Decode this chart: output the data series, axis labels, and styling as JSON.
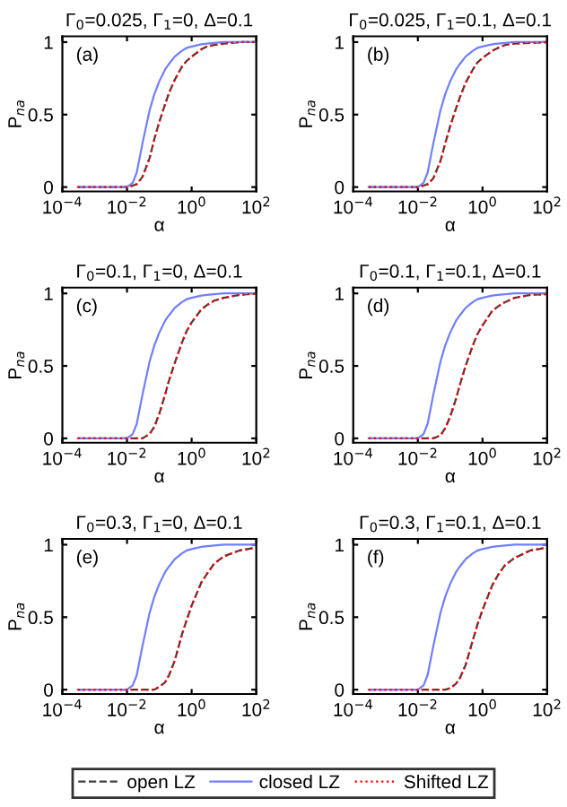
{
  "chart_data": [
    {
      "type": "line",
      "title": "Γ$_{0}$=0.025, Γ$_{1}$=0, Δ=0.1",
      "xlabel": "α",
      "ylabel": "P$_{na}$",
      "annotations": [
        "(a)"
      ],
      "log": "x",
      "xlim": [
        0.0001,
        100
      ],
      "ylim": [
        -0.03,
        1.04
      ],
      "xticks": [
        {
          "value": 0.0001,
          "label": "10$^{−4}$"
        },
        {
          "value": 0.01,
          "label": "10$^{−2}$"
        },
        {
          "value": 1,
          "label": "10$^{0}$"
        },
        {
          "value": 100,
          "label": "10$^{2}$"
        }
      ],
      "yticks": [
        0,
        0.5,
        1
      ],
      "x": [
        0.0003,
        0.001,
        0.003,
        0.01,
        0.015,
        0.02,
        0.03,
        0.05,
        0.07,
        0.1,
        0.15,
        0.2,
        0.3,
        0.5,
        0.7,
        1,
        2,
        3,
        5,
        10,
        30,
        100
      ],
      "legend": "bottom",
      "series": [
        {
          "name": "open LZ",
          "color": "#404040",
          "line_style": "dashed",
          "values": [
            0,
            0,
            0,
            0,
            0.01,
            0.02,
            0.07,
            0.2,
            0.33,
            0.45,
            0.57,
            0.65,
            0.74,
            0.83,
            0.87,
            0.9,
            0.95,
            0.97,
            0.98,
            0.99,
            1,
            1
          ]
        },
        {
          "name": "closed LZ",
          "color": "#6f7fff",
          "line_style": "solid",
          "values": [
            0,
            0,
            0,
            0,
            0.03,
            0.1,
            0.3,
            0.53,
            0.64,
            0.73,
            0.81,
            0.85,
            0.9,
            0.94,
            0.96,
            0.97,
            0.985,
            0.99,
            0.995,
            1,
            1,
            1
          ]
        },
        {
          "name": "Shifted LZ",
          "color": "#ff0000",
          "line_style": "dotted",
          "values": [
            0,
            0,
            0,
            0,
            0.01,
            0.02,
            0.07,
            0.2,
            0.33,
            0.45,
            0.57,
            0.65,
            0.74,
            0.83,
            0.87,
            0.9,
            0.95,
            0.97,
            0.98,
            0.99,
            1,
            1
          ]
        }
      ]
    },
    {
      "type": "line",
      "title": "Γ$_{0}$=0.025, Γ$_{1}$=0.1, Δ=0.1",
      "xlabel": "α",
      "ylabel": "P$_{na}$",
      "annotations": [
        "(b)"
      ],
      "log": "x",
      "xlim": [
        0.0001,
        100
      ],
      "ylim": [
        -0.03,
        1.04
      ],
      "xticks": [
        {
          "value": 0.0001,
          "label": "10$^{−4}$"
        },
        {
          "value": 0.01,
          "label": "10$^{−2}$"
        },
        {
          "value": 1,
          "label": "10$^{0}$"
        },
        {
          "value": 100,
          "label": "10$^{2}$"
        }
      ],
      "yticks": [
        0,
        0.5,
        1
      ],
      "x": [
        0.0003,
        0.001,
        0.003,
        0.01,
        0.015,
        0.02,
        0.03,
        0.05,
        0.07,
        0.1,
        0.15,
        0.2,
        0.3,
        0.5,
        0.7,
        1,
        2,
        3,
        5,
        10,
        30,
        100
      ],
      "legend": "bottom",
      "series": [
        {
          "name": "open LZ",
          "color": "#404040",
          "line_style": "dashed",
          "values": [
            0,
            0,
            0,
            0,
            0.01,
            0.02,
            0.06,
            0.18,
            0.3,
            0.42,
            0.54,
            0.62,
            0.72,
            0.81,
            0.86,
            0.89,
            0.94,
            0.96,
            0.98,
            0.99,
            0.995,
            1
          ]
        },
        {
          "name": "closed LZ",
          "color": "#6f7fff",
          "line_style": "solid",
          "values": [
            0,
            0,
            0,
            0,
            0.03,
            0.1,
            0.3,
            0.53,
            0.64,
            0.73,
            0.81,
            0.85,
            0.9,
            0.94,
            0.96,
            0.97,
            0.985,
            0.99,
            0.995,
            1,
            1,
            1
          ]
        },
        {
          "name": "Shifted LZ",
          "color": "#ff0000",
          "line_style": "dotted",
          "values": [
            0,
            0,
            0,
            0,
            0.01,
            0.02,
            0.06,
            0.18,
            0.3,
            0.42,
            0.54,
            0.62,
            0.72,
            0.81,
            0.86,
            0.89,
            0.94,
            0.96,
            0.98,
            0.99,
            0.995,
            1
          ]
        }
      ]
    },
    {
      "type": "line",
      "title": "Γ$_{0}$=0.1, Γ$_{1}$=0, Δ=0.1",
      "xlabel": "α",
      "ylabel": "P$_{na}$",
      "annotations": [
        "(c)"
      ],
      "log": "x",
      "xlim": [
        0.0001,
        100
      ],
      "ylim": [
        -0.03,
        1.04
      ],
      "xticks": [
        {
          "value": 0.0001,
          "label": "10$^{−4}$"
        },
        {
          "value": 0.01,
          "label": "10$^{−2}$"
        },
        {
          "value": 1,
          "label": "10$^{0}$"
        },
        {
          "value": 100,
          "label": "10$^{2}$"
        }
      ],
      "yticks": [
        0,
        0.5,
        1
      ],
      "x": [
        0.0003,
        0.001,
        0.003,
        0.01,
        0.015,
        0.02,
        0.03,
        0.05,
        0.07,
        0.1,
        0.15,
        0.2,
        0.3,
        0.5,
        0.7,
        1,
        2,
        3,
        5,
        10,
        30,
        100
      ],
      "legend": "bottom",
      "series": [
        {
          "name": "open LZ",
          "color": "#404040",
          "line_style": "dashed",
          "values": [
            0,
            0,
            0,
            0,
            0,
            0,
            0,
            0.03,
            0.08,
            0.17,
            0.3,
            0.4,
            0.52,
            0.66,
            0.74,
            0.8,
            0.89,
            0.92,
            0.95,
            0.97,
            0.99,
            1
          ]
        },
        {
          "name": "closed LZ",
          "color": "#6f7fff",
          "line_style": "solid",
          "values": [
            0,
            0,
            0,
            0,
            0.03,
            0.1,
            0.3,
            0.53,
            0.64,
            0.73,
            0.81,
            0.85,
            0.9,
            0.94,
            0.96,
            0.97,
            0.985,
            0.99,
            0.995,
            1,
            1,
            1
          ]
        },
        {
          "name": "Shifted LZ",
          "color": "#ff0000",
          "line_style": "dotted",
          "values": [
            0,
            0,
            0,
            0,
            0,
            0,
            0,
            0.03,
            0.08,
            0.17,
            0.3,
            0.4,
            0.52,
            0.66,
            0.74,
            0.8,
            0.89,
            0.92,
            0.95,
            0.97,
            0.99,
            1
          ]
        }
      ]
    },
    {
      "type": "line",
      "title": "Γ$_{0}$=0.1, Γ$_{1}$=0.1, Δ=0.1",
      "xlabel": "α",
      "ylabel": "P$_{na}$",
      "annotations": [
        "(d)"
      ],
      "log": "x",
      "xlim": [
        0.0001,
        100
      ],
      "ylim": [
        -0.03,
        1.04
      ],
      "xticks": [
        {
          "value": 0.0001,
          "label": "10$^{−4}$"
        },
        {
          "value": 0.01,
          "label": "10$^{−2}$"
        },
        {
          "value": 1,
          "label": "10$^{0}$"
        },
        {
          "value": 100,
          "label": "10$^{2}$"
        }
      ],
      "yticks": [
        0,
        0.5,
        1
      ],
      "x": [
        0.0003,
        0.001,
        0.003,
        0.01,
        0.015,
        0.02,
        0.03,
        0.05,
        0.07,
        0.1,
        0.15,
        0.2,
        0.3,
        0.5,
        0.7,
        1,
        2,
        3,
        5,
        10,
        30,
        100
      ],
      "legend": "bottom",
      "series": [
        {
          "name": "open LZ",
          "color": "#404040",
          "line_style": "dashed",
          "values": [
            0,
            0,
            0,
            0,
            0,
            0,
            0,
            0.02,
            0.07,
            0.15,
            0.27,
            0.37,
            0.5,
            0.64,
            0.72,
            0.78,
            0.88,
            0.91,
            0.94,
            0.97,
            0.99,
            0.995
          ]
        },
        {
          "name": "closed LZ",
          "color": "#6f7fff",
          "line_style": "solid",
          "values": [
            0,
            0,
            0,
            0,
            0.03,
            0.1,
            0.3,
            0.53,
            0.64,
            0.73,
            0.81,
            0.85,
            0.9,
            0.94,
            0.96,
            0.97,
            0.985,
            0.99,
            0.995,
            1,
            1,
            1
          ]
        },
        {
          "name": "Shifted LZ",
          "color": "#ff0000",
          "line_style": "dotted",
          "values": [
            0,
            0,
            0,
            0,
            0,
            0,
            0,
            0.02,
            0.07,
            0.15,
            0.27,
            0.37,
            0.5,
            0.64,
            0.72,
            0.78,
            0.88,
            0.91,
            0.94,
            0.97,
            0.99,
            0.995
          ]
        }
      ]
    },
    {
      "type": "line",
      "title": "Γ$_{0}$=0.3, Γ$_{1}$=0, Δ=0.1",
      "xlabel": "α",
      "ylabel": "P$_{na}$",
      "annotations": [
        "(e)"
      ],
      "log": "x",
      "xlim": [
        0.0001,
        100
      ],
      "ylim": [
        -0.03,
        1.04
      ],
      "xticks": [
        {
          "value": 0.0001,
          "label": "10$^{−4}$"
        },
        {
          "value": 0.01,
          "label": "10$^{−2}$"
        },
        {
          "value": 1,
          "label": "10$^{0}$"
        },
        {
          "value": 100,
          "label": "10$^{2}$"
        }
      ],
      "yticks": [
        0,
        0.5,
        1
      ],
      "x": [
        0.0003,
        0.001,
        0.003,
        0.01,
        0.015,
        0.02,
        0.03,
        0.05,
        0.07,
        0.1,
        0.15,
        0.2,
        0.3,
        0.5,
        0.7,
        1,
        2,
        3,
        5,
        10,
        30,
        100
      ],
      "legend": "bottom",
      "series": [
        {
          "name": "open LZ",
          "color": "#404040",
          "line_style": "dashed",
          "values": [
            0,
            0,
            0,
            0,
            0,
            0,
            0,
            0,
            0,
            0.02,
            0.05,
            0.1,
            0.2,
            0.38,
            0.48,
            0.58,
            0.74,
            0.8,
            0.87,
            0.92,
            0.96,
            0.98
          ]
        },
        {
          "name": "closed LZ",
          "color": "#6f7fff",
          "line_style": "solid",
          "values": [
            0,
            0,
            0,
            0,
            0.03,
            0.1,
            0.3,
            0.53,
            0.64,
            0.73,
            0.81,
            0.85,
            0.9,
            0.94,
            0.96,
            0.97,
            0.985,
            0.99,
            0.995,
            1,
            1,
            1
          ]
        },
        {
          "name": "Shifted LZ",
          "color": "#ff0000",
          "line_style": "dotted",
          "values": [
            0,
            0,
            0,
            0,
            0,
            0,
            0,
            0,
            0,
            0.02,
            0.05,
            0.1,
            0.2,
            0.38,
            0.48,
            0.58,
            0.74,
            0.8,
            0.87,
            0.92,
            0.96,
            0.98
          ]
        }
      ]
    },
    {
      "type": "line",
      "title": "Γ$_{0}$=0.3, Γ$_{1}$=0.1, Δ=0.1",
      "xlabel": "α",
      "ylabel": "P$_{na}$",
      "annotations": [
        "(f)"
      ],
      "log": "x",
      "xlim": [
        0.0001,
        100
      ],
      "ylim": [
        -0.03,
        1.04
      ],
      "xticks": [
        {
          "value": 0.0001,
          "label": "10$^{−4}$"
        },
        {
          "value": 0.01,
          "label": "10$^{−2}$"
        },
        {
          "value": 1,
          "label": "10$^{0}$"
        },
        {
          "value": 100,
          "label": "10$^{2}$"
        }
      ],
      "yticks": [
        0,
        0.5,
        1
      ],
      "x": [
        0.0003,
        0.001,
        0.003,
        0.01,
        0.015,
        0.02,
        0.03,
        0.05,
        0.07,
        0.1,
        0.15,
        0.2,
        0.3,
        0.5,
        0.7,
        1,
        2,
        3,
        5,
        10,
        30,
        100
      ],
      "legend": "bottom",
      "series": [
        {
          "name": "open LZ",
          "color": "#404040",
          "line_style": "dashed",
          "values": [
            0,
            0,
            0,
            0,
            0,
            0,
            0,
            0,
            0,
            0.01,
            0.04,
            0.08,
            0.17,
            0.34,
            0.45,
            0.55,
            0.72,
            0.79,
            0.86,
            0.91,
            0.96,
            0.98
          ]
        },
        {
          "name": "closed LZ",
          "color": "#6f7fff",
          "line_style": "solid",
          "values": [
            0,
            0,
            0,
            0,
            0.03,
            0.1,
            0.3,
            0.53,
            0.64,
            0.73,
            0.81,
            0.85,
            0.9,
            0.94,
            0.96,
            0.97,
            0.985,
            0.99,
            0.995,
            1,
            1,
            1
          ]
        },
        {
          "name": "Shifted LZ",
          "color": "#ff0000",
          "line_style": "dotted",
          "values": [
            0,
            0,
            0,
            0,
            0,
            0,
            0,
            0,
            0,
            0.01,
            0.04,
            0.08,
            0.17,
            0.34,
            0.45,
            0.55,
            0.72,
            0.79,
            0.86,
            0.91,
            0.96,
            0.98
          ]
        }
      ]
    }
  ]
}
